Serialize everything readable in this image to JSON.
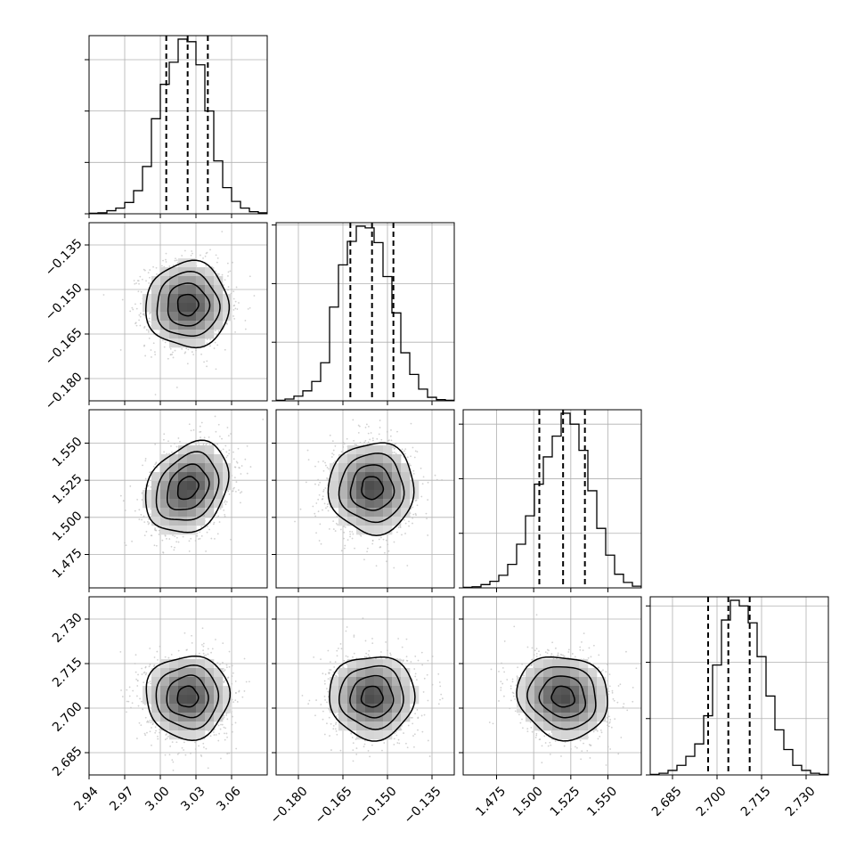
{
  "chart_data": {
    "type": "corner",
    "parameters": [
      {
        "range": [
          2.94,
          3.09
        ],
        "ticks": [
          2.94,
          2.97,
          3.0,
          3.03,
          3.06
        ],
        "tick_labels": [
          "2.94",
          "2.97",
          "3.00",
          "3.03",
          "3.06"
        ],
        "quantiles": [
          3.005,
          3.023,
          3.04
        ],
        "histogram": {
          "bin_start": 2.94,
          "bin_width": 0.0075,
          "counts": [
            1,
            2,
            6,
            11,
            22,
            45,
            92,
            185,
            252,
            295,
            340,
            335,
            290,
            200,
            103,
            51,
            24,
            11,
            4,
            2
          ]
        }
      },
      {
        "range": [
          -0.1875,
          -0.1275
        ],
        "ticks": [
          -0.18,
          -0.165,
          -0.15,
          -0.135
        ],
        "tick_labels": [
          "−0.180",
          "−0.165",
          "−0.150",
          "−0.135"
        ],
        "quantiles": [
          -0.1625,
          -0.1552,
          -0.148
        ],
        "histogram": {
          "bin_start": -0.1875,
          "bin_width": 0.003,
          "counts": [
            1,
            3,
            8,
            17,
            33,
            65,
            160,
            232,
            272,
            298,
            295,
            270,
            212,
            150,
            82,
            45,
            20,
            6,
            2,
            1
          ]
        }
      },
      {
        "range": [
          1.4525,
          1.5725
        ],
        "ticks": [
          1.475,
          1.5,
          1.525,
          1.55
        ],
        "tick_labels": [
          "1.475",
          "1.500",
          "1.525",
          "1.550"
        ],
        "quantiles": [
          1.5038,
          1.5198,
          1.5345
        ],
        "histogram": {
          "bin_start": 1.4525,
          "bin_width": 0.006,
          "counts": [
            1,
            2,
            6,
            12,
            23,
            43,
            80,
            132,
            190,
            240,
            278,
            320,
            300,
            252,
            178,
            109,
            60,
            25,
            10,
            3
          ]
        }
      },
      {
        "range": [
          2.6775,
          2.7375
        ],
        "ticks": [
          2.685,
          2.7,
          2.715,
          2.73
        ],
        "tick_labels": [
          "2.685",
          "2.700",
          "2.715",
          "2.730"
        ],
        "quantiles": [
          2.697,
          2.7038,
          2.711
        ],
        "histogram": {
          "bin_start": 2.6775,
          "bin_width": 0.003,
          "counts": [
            1,
            3,
            8,
            17,
            33,
            55,
            105,
            195,
            275,
            310,
            300,
            270,
            210,
            140,
            80,
            45,
            17,
            8,
            3,
            1
          ]
        }
      }
    ],
    "gaussian": {
      "mean": [
        3.023,
        -0.1552,
        1.5198,
        2.7038
      ],
      "sd": [
        0.0175,
        0.0072,
        0.0153,
        0.007
      ],
      "corr": [
        [
          1,
          0,
          0.25,
          0
        ],
        [
          0,
          1,
          0,
          0
        ],
        [
          0.25,
          0,
          1,
          -0.1
        ],
        [
          0,
          0,
          -0.1,
          1
        ]
      ]
    },
    "xlabels": [
      "",
      "",
      "",
      ""
    ],
    "ylabels": [
      "",
      "",
      "",
      ""
    ],
    "grid": true,
    "contour_levels_sigma": [
      0.5,
      1.0,
      1.5,
      2.0
    ],
    "colors": {
      "line": "#000000",
      "grid": "#b0b0b0",
      "scatter": "#bdbdbd",
      "background": "#ffffff"
    }
  }
}
